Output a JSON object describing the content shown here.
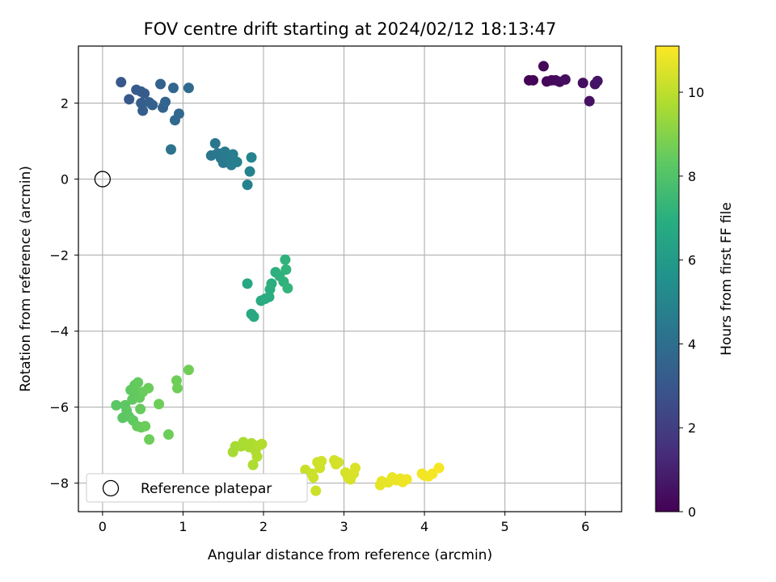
{
  "chart_data": {
    "type": "scatter",
    "title": "FOV centre drift starting at 2024/02/12 18:13:47",
    "xlabel": "Angular distance from reference (arcmin)",
    "ylabel": "Rotation from reference (arcmin)",
    "xlim": [
      -0.3,
      6.45
    ],
    "ylim": [
      -8.75,
      3.5
    ],
    "xticks": [
      0,
      1,
      2,
      3,
      4,
      5,
      6
    ],
    "yticks": [
      -8,
      -6,
      -4,
      -2,
      0,
      2
    ],
    "grid": true,
    "colorbar": {
      "label": "Hours from first FF file",
      "colormap": "viridis",
      "range": [
        0,
        11.1
      ],
      "ticks": [
        0,
        2,
        4,
        6,
        8,
        10
      ]
    },
    "legend": {
      "placement": "lower-left",
      "entries": [
        "Reference platepar"
      ]
    },
    "reference_point": {
      "x": 0,
      "y": 0
    },
    "series": [
      {
        "points": [
          {
            "x": 5.3,
            "y": 2.6,
            "c": 0.05
          },
          {
            "x": 5.35,
            "y": 2.6,
            "c": 0.1
          },
          {
            "x": 5.48,
            "y": 2.97,
            "c": 0.15
          },
          {
            "x": 5.52,
            "y": 2.57,
            "c": 0.2
          },
          {
            "x": 5.58,
            "y": 2.6,
            "c": 0.25
          },
          {
            "x": 5.63,
            "y": 2.6,
            "c": 0.3
          },
          {
            "x": 5.68,
            "y": 2.56,
            "c": 0.35
          },
          {
            "x": 5.75,
            "y": 2.62,
            "c": 0.4
          },
          {
            "x": 5.97,
            "y": 2.53,
            "c": 0.45
          },
          {
            "x": 6.05,
            "y": 2.05,
            "c": 0.5
          },
          {
            "x": 6.12,
            "y": 2.5,
            "c": 0.55
          },
          {
            "x": 6.15,
            "y": 2.58,
            "c": 0.6
          },
          {
            "x": 0.23,
            "y": 2.55,
            "c": 3.0
          },
          {
            "x": 0.33,
            "y": 2.1,
            "c": 3.05
          },
          {
            "x": 0.42,
            "y": 2.35,
            "c": 3.1
          },
          {
            "x": 0.48,
            "y": 2.3,
            "c": 3.15
          },
          {
            "x": 0.52,
            "y": 2.25,
            "c": 3.2
          },
          {
            "x": 0.48,
            "y": 2.0,
            "c": 3.25
          },
          {
            "x": 0.5,
            "y": 1.8,
            "c": 3.3
          },
          {
            "x": 0.58,
            "y": 2.02,
            "c": 3.35
          },
          {
            "x": 0.62,
            "y": 1.95,
            "c": 3.4
          },
          {
            "x": 0.72,
            "y": 2.5,
            "c": 3.45
          },
          {
            "x": 0.75,
            "y": 1.88,
            "c": 3.5
          },
          {
            "x": 0.78,
            "y": 2.03,
            "c": 3.55
          },
          {
            "x": 0.88,
            "y": 2.4,
            "c": 3.6
          },
          {
            "x": 0.9,
            "y": 1.55,
            "c": 3.7
          },
          {
            "x": 0.95,
            "y": 1.72,
            "c": 3.75
          },
          {
            "x": 1.07,
            "y": 2.4,
            "c": 3.8
          },
          {
            "x": 0.85,
            "y": 0.78,
            "c": 4.2
          },
          {
            "x": 1.35,
            "y": 0.62,
            "c": 4.3
          },
          {
            "x": 1.4,
            "y": 0.94,
            "c": 4.35
          },
          {
            "x": 1.43,
            "y": 0.68,
            "c": 4.4
          },
          {
            "x": 1.47,
            "y": 0.55,
            "c": 4.45
          },
          {
            "x": 1.5,
            "y": 0.43,
            "c": 4.5
          },
          {
            "x": 1.52,
            "y": 0.72,
            "c": 4.55
          },
          {
            "x": 1.55,
            "y": 0.6,
            "c": 4.6
          },
          {
            "x": 1.58,
            "y": 0.48,
            "c": 4.65
          },
          {
            "x": 1.6,
            "y": 0.37,
            "c": 4.7
          },
          {
            "x": 1.62,
            "y": 0.65,
            "c": 4.75
          },
          {
            "x": 1.67,
            "y": 0.45,
            "c": 4.8
          },
          {
            "x": 1.8,
            "y": -0.15,
            "c": 4.9
          },
          {
            "x": 1.83,
            "y": 0.2,
            "c": 4.95
          },
          {
            "x": 1.85,
            "y": 0.57,
            "c": 5.0
          },
          {
            "x": 1.8,
            "y": -2.75,
            "c": 6.6
          },
          {
            "x": 1.85,
            "y": -3.55,
            "c": 6.65
          },
          {
            "x": 1.88,
            "y": -3.62,
            "c": 6.7
          },
          {
            "x": 1.97,
            "y": -3.2,
            "c": 6.75
          },
          {
            "x": 2.02,
            "y": -3.15,
            "c": 6.8
          },
          {
            "x": 2.07,
            "y": -3.1,
            "c": 6.85
          },
          {
            "x": 2.08,
            "y": -2.9,
            "c": 6.9
          },
          {
            "x": 2.1,
            "y": -2.75,
            "c": 6.95
          },
          {
            "x": 2.15,
            "y": -2.45,
            "c": 7.0
          },
          {
            "x": 2.2,
            "y": -2.55,
            "c": 7.05
          },
          {
            "x": 2.25,
            "y": -2.7,
            "c": 7.1
          },
          {
            "x": 2.27,
            "y": -2.12,
            "c": 7.15
          },
          {
            "x": 2.28,
            "y": -2.38,
            "c": 7.2
          },
          {
            "x": 2.3,
            "y": -2.87,
            "c": 7.25
          },
          {
            "x": 0.17,
            "y": -5.95,
            "c": 8.2
          },
          {
            "x": 0.25,
            "y": -6.28,
            "c": 8.22
          },
          {
            "x": 0.28,
            "y": -5.95,
            "c": 8.24
          },
          {
            "x": 0.3,
            "y": -6.1,
            "c": 8.26
          },
          {
            "x": 0.33,
            "y": -6.25,
            "c": 8.28
          },
          {
            "x": 0.35,
            "y": -5.55,
            "c": 8.3
          },
          {
            "x": 0.37,
            "y": -5.8,
            "c": 8.32
          },
          {
            "x": 0.38,
            "y": -6.35,
            "c": 8.34
          },
          {
            "x": 0.4,
            "y": -5.42,
            "c": 8.36
          },
          {
            "x": 0.42,
            "y": -5.6,
            "c": 8.38
          },
          {
            "x": 0.43,
            "y": -6.5,
            "c": 8.4
          },
          {
            "x": 0.44,
            "y": -5.35,
            "c": 8.42
          },
          {
            "x": 0.46,
            "y": -5.75,
            "c": 8.44
          },
          {
            "x": 0.47,
            "y": -6.05,
            "c": 8.46
          },
          {
            "x": 0.48,
            "y": -6.53,
            "c": 8.48
          },
          {
            "x": 0.5,
            "y": -5.6,
            "c": 8.5
          },
          {
            "x": 0.53,
            "y": -6.5,
            "c": 8.52
          },
          {
            "x": 0.57,
            "y": -5.5,
            "c": 8.54
          },
          {
            "x": 0.58,
            "y": -6.85,
            "c": 8.56
          },
          {
            "x": 0.7,
            "y": -5.92,
            "c": 8.58
          },
          {
            "x": 0.82,
            "y": -6.72,
            "c": 8.6
          },
          {
            "x": 0.92,
            "y": -5.3,
            "c": 8.62
          },
          {
            "x": 0.93,
            "y": -5.5,
            "c": 8.64
          },
          {
            "x": 1.07,
            "y": -5.02,
            "c": 8.66
          },
          {
            "x": 1.62,
            "y": -7.18,
            "c": 9.6
          },
          {
            "x": 1.65,
            "y": -7.03,
            "c": 9.62
          },
          {
            "x": 1.72,
            "y": -7.03,
            "c": 9.64
          },
          {
            "x": 1.75,
            "y": -6.92,
            "c": 9.66
          },
          {
            "x": 1.78,
            "y": -7.0,
            "c": 9.68
          },
          {
            "x": 1.82,
            "y": -7.05,
            "c": 9.7
          },
          {
            "x": 1.85,
            "y": -6.95,
            "c": 9.72
          },
          {
            "x": 1.87,
            "y": -7.52,
            "c": 9.74
          },
          {
            "x": 1.9,
            "y": -7.15,
            "c": 9.76
          },
          {
            "x": 1.92,
            "y": -7.3,
            "c": 9.78
          },
          {
            "x": 1.95,
            "y": -7.0,
            "c": 9.8
          },
          {
            "x": 1.98,
            "y": -6.97,
            "c": 9.82
          },
          {
            "x": 2.52,
            "y": -7.65,
            "c": 10.2
          },
          {
            "x": 2.6,
            "y": -7.75,
            "c": 10.22
          },
          {
            "x": 2.62,
            "y": -7.85,
            "c": 10.24
          },
          {
            "x": 2.65,
            "y": -8.2,
            "c": 10.26
          },
          {
            "x": 2.67,
            "y": -7.45,
            "c": 10.28
          },
          {
            "x": 2.7,
            "y": -7.6,
            "c": 10.3
          },
          {
            "x": 2.72,
            "y": -7.42,
            "c": 10.32
          },
          {
            "x": 2.88,
            "y": -7.4,
            "c": 10.34
          },
          {
            "x": 2.9,
            "y": -7.5,
            "c": 10.36
          },
          {
            "x": 2.93,
            "y": -7.45,
            "c": 10.38
          },
          {
            "x": 3.02,
            "y": -7.72,
            "c": 10.4
          },
          {
            "x": 3.05,
            "y": -7.85,
            "c": 10.42
          },
          {
            "x": 3.08,
            "y": -7.9,
            "c": 10.44
          },
          {
            "x": 3.12,
            "y": -7.75,
            "c": 10.46
          },
          {
            "x": 3.14,
            "y": -7.6,
            "c": 10.48
          },
          {
            "x": 3.45,
            "y": -8.05,
            "c": 10.7
          },
          {
            "x": 3.47,
            "y": -7.95,
            "c": 10.72
          },
          {
            "x": 3.55,
            "y": -7.98,
            "c": 10.74
          },
          {
            "x": 3.6,
            "y": -7.85,
            "c": 10.76
          },
          {
            "x": 3.65,
            "y": -7.92,
            "c": 10.78
          },
          {
            "x": 3.7,
            "y": -7.88,
            "c": 10.8
          },
          {
            "x": 3.73,
            "y": -7.97,
            "c": 10.82
          },
          {
            "x": 3.78,
            "y": -7.9,
            "c": 10.84
          },
          {
            "x": 3.97,
            "y": -7.75,
            "c": 10.9
          },
          {
            "x": 4.0,
            "y": -7.8,
            "c": 10.92
          },
          {
            "x": 4.05,
            "y": -7.82,
            "c": 10.94
          },
          {
            "x": 4.1,
            "y": -7.75,
            "c": 10.96
          },
          {
            "x": 4.18,
            "y": -7.6,
            "c": 10.98
          }
        ]
      }
    ]
  }
}
